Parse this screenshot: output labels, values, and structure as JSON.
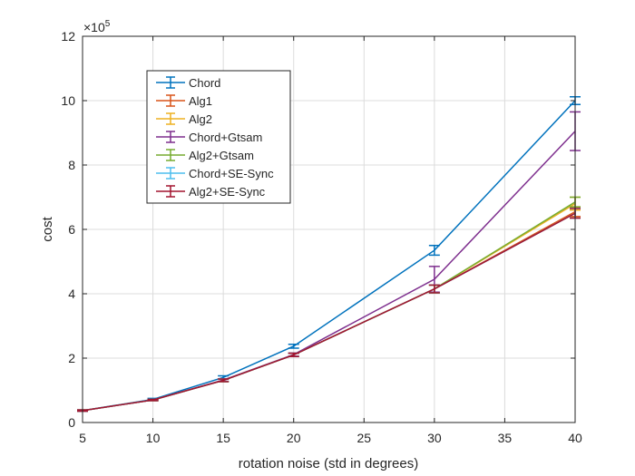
{
  "chart_data": {
    "type": "line",
    "title": "",
    "xlabel": "rotation noise (std in degrees)",
    "ylabel": "cost",
    "y_exponent_label": "×10",
    "y_exponent_power": "5",
    "xlim": [
      5,
      40
    ],
    "ylim": [
      0,
      12
    ],
    "x_ticks": [
      5,
      10,
      15,
      20,
      25,
      30,
      35,
      40
    ],
    "y_ticks": [
      0,
      2,
      4,
      6,
      8,
      10,
      12
    ],
    "grid": true,
    "legend_position": "top-left",
    "x": [
      5,
      10,
      15,
      20,
      30,
      40
    ],
    "series": [
      {
        "name": "Chord",
        "color": "#0072BD",
        "values": [
          0.37,
          0.72,
          1.4,
          2.37,
          5.35,
          10.0
        ],
        "errors": [
          0.02,
          0.03,
          0.05,
          0.06,
          0.15,
          0.12
        ]
      },
      {
        "name": "Alg1",
        "color": "#D95319",
        "values": [
          0.37,
          0.7,
          1.31,
          2.1,
          4.15,
          6.55
        ],
        "errors": [
          0.02,
          0.02,
          0.04,
          0.05,
          0.12,
          0.15
        ]
      },
      {
        "name": "Alg2",
        "color": "#EDB120",
        "values": [
          0.37,
          0.7,
          1.31,
          2.1,
          4.15,
          6.8
        ],
        "errors": [
          0.02,
          0.02,
          0.04,
          0.05,
          0.12,
          0.2
        ]
      },
      {
        "name": "Chord+Gtsam",
        "color": "#7E2F8E",
        "values": [
          0.37,
          0.7,
          1.32,
          2.11,
          4.45,
          9.05
        ],
        "errors": [
          0.02,
          0.02,
          0.04,
          0.05,
          0.4,
          0.6
        ]
      },
      {
        "name": "Alg2+Gtsam",
        "color": "#77AC30",
        "values": [
          0.37,
          0.7,
          1.31,
          2.1,
          4.15,
          6.85
        ],
        "errors": [
          0.02,
          0.02,
          0.04,
          0.05,
          0.12,
          0.15
        ]
      },
      {
        "name": "Chord+SE-Sync",
        "color": "#4DBEEE",
        "values": [
          0.37,
          0.7,
          1.31,
          2.1,
          4.15,
          6.5
        ],
        "errors": [
          0.02,
          0.02,
          0.04,
          0.05,
          0.12,
          0.15
        ]
      },
      {
        "name": "Alg2+SE-Sync",
        "color": "#A2142F",
        "values": [
          0.37,
          0.7,
          1.31,
          2.1,
          4.15,
          6.5
        ],
        "errors": [
          0.02,
          0.02,
          0.04,
          0.05,
          0.12,
          0.15
        ]
      }
    ]
  }
}
